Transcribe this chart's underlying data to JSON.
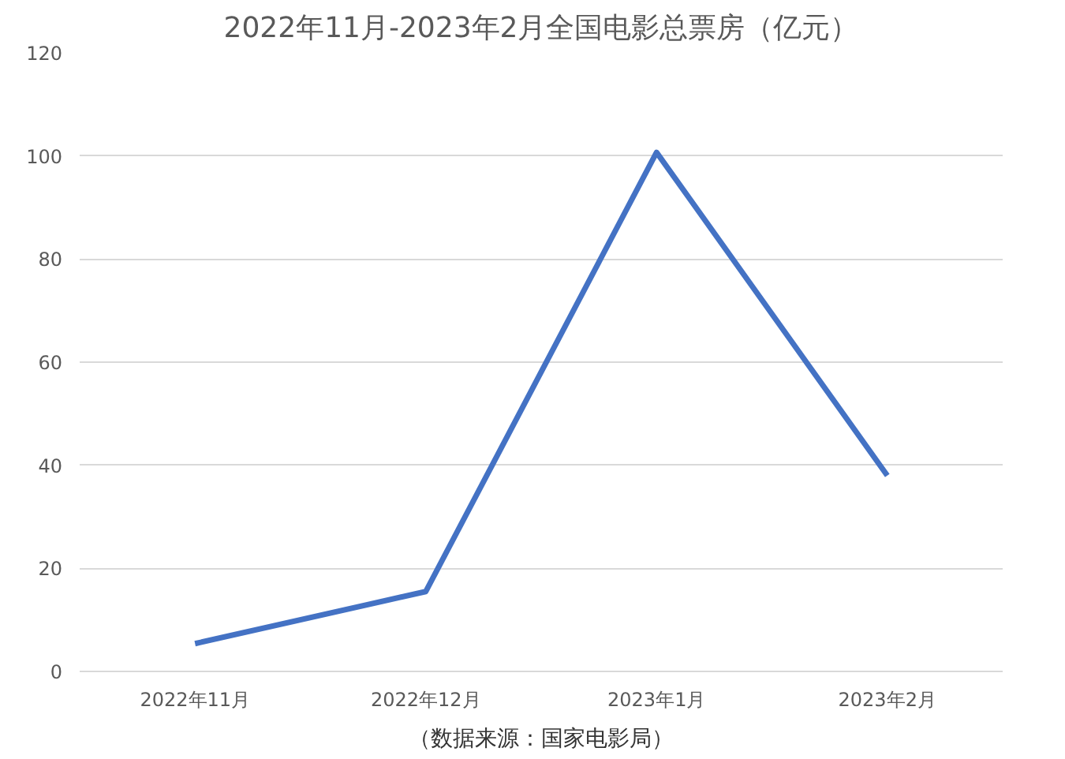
{
  "chart_data": {
    "type": "line",
    "title": "2022年11月-2023年2月全国电影总票房（亿元）",
    "categories": [
      "2022年11月",
      "2022年12月",
      "2023年1月",
      "2023年2月"
    ],
    "series": [
      {
        "color": "#4472c4",
        "values": [
          5.4,
          15.5,
          100.7,
          38.0
        ]
      }
    ],
    "ylim": [
      0,
      120
    ],
    "yticks": [
      0,
      20,
      40,
      60,
      80,
      100,
      120
    ],
    "grid": "y",
    "annotations": [
      "（数据来源：国家电影局）"
    ]
  }
}
